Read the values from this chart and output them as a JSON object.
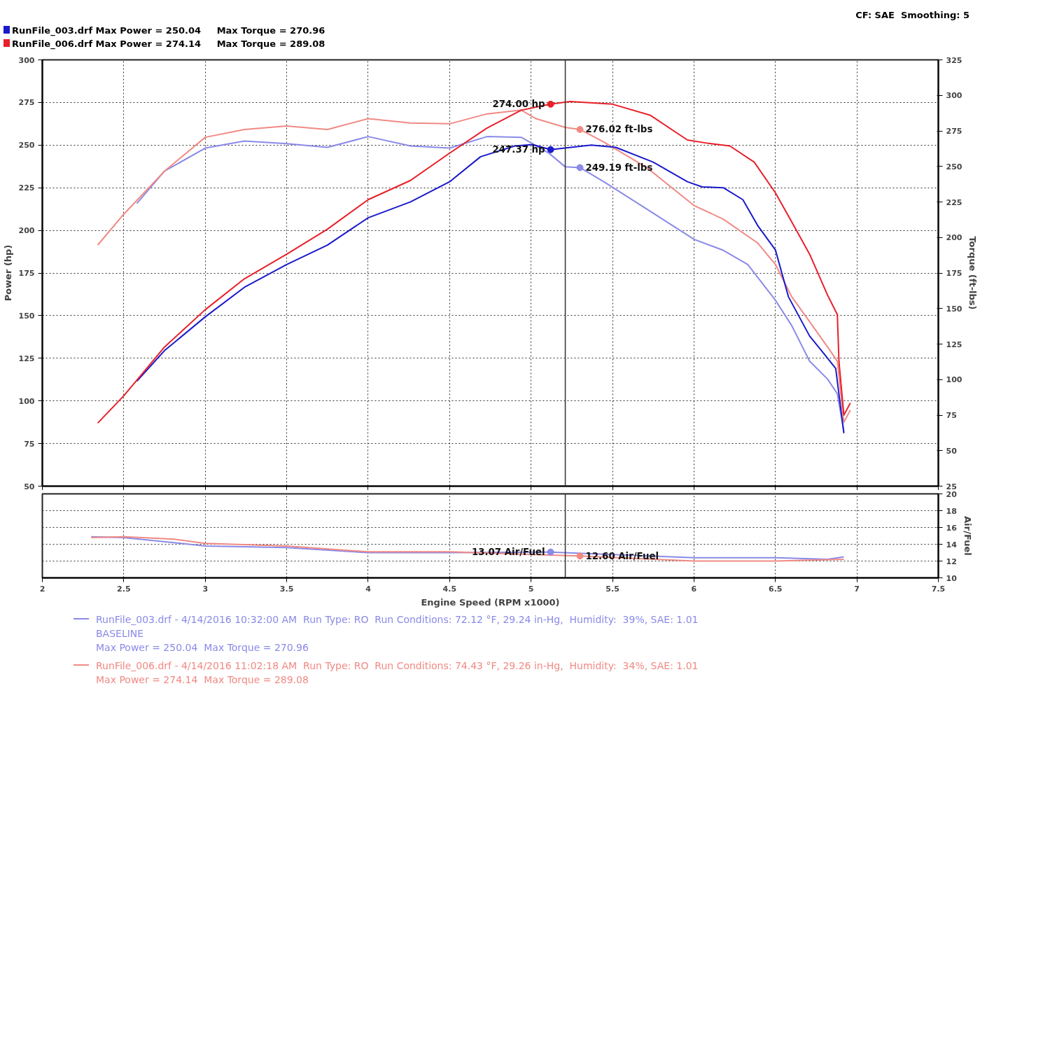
{
  "chart_data": [
    {
      "type": "line",
      "ylabel": "Power (hp)",
      "y2label": "Torque (ft-lbs)",
      "xlim": [
        2.0,
        7.5
      ],
      "xticks": [
        2.0,
        2.5,
        3.0,
        3.5,
        4.0,
        4.5,
        5.0,
        5.5,
        6.0,
        6.5,
        7.0,
        7.5
      ],
      "ylim": [
        50,
        300
      ],
      "yticks": [
        50,
        75,
        100,
        125,
        150,
        175,
        200,
        225,
        250,
        275,
        300
      ],
      "y2lim": [
        25,
        325
      ],
      "y2ticks": [
        25,
        50,
        75,
        100,
        125,
        150,
        175,
        200,
        225,
        250,
        275,
        300,
        325
      ],
      "grid": true,
      "tick_labels": "y",
      "line_style": "solid",
      "annotations": [
        "RunFile_003.drf Max Power = 250.04     Max Torque = 270.96",
        "RunFile_006.drf Max Power = 274.14     Max Torque = 289.08",
        "CF: SAE  Smoothing: 5"
      ],
      "ref_lines": [
        {
          "axis": "x",
          "value": 5.21,
          "color": "#333333"
        }
      ],
      "series": [
        {
          "color": "#8a8ae8",
          "axis": "y2",
          "x": [
            2.58,
            2.75,
            3.0,
            3.24,
            3.5,
            3.75,
            4.0,
            4.26,
            4.5,
            4.73,
            4.94,
            5.11,
            5.21,
            5.3,
            5.45,
            5.71,
            6.0,
            6.18,
            6.33,
            6.5,
            6.6,
            6.71,
            6.82,
            6.88,
            6.92
          ],
          "values": [
            224,
            246.7,
            262.9,
            267.9,
            266,
            263.4,
            271,
            264.4,
            262.9,
            271,
            270.5,
            259.3,
            249.7,
            249.19,
            239,
            220,
            198.7,
            191,
            181,
            155.8,
            138,
            112.9,
            100.3,
            90,
            63.4
          ],
          "value_labels": [
            null,
            null,
            null,
            null,
            null,
            null,
            null,
            null,
            null,
            null,
            null,
            null,
            null,
            "249.19 ft-lbs",
            null,
            null,
            null,
            null,
            null,
            null,
            null,
            null,
            null,
            null,
            null
          ]
        },
        {
          "color": "#f08a84",
          "axis": "y2",
          "x": [
            2.34,
            2.5,
            2.75,
            3.0,
            3.24,
            3.5,
            3.75,
            4.0,
            4.26,
            4.5,
            4.73,
            4.94,
            5.03,
            5.21,
            5.3,
            5.45,
            5.71,
            6.0,
            6.18,
            6.39,
            6.5,
            6.6,
            6.71,
            6.82,
            6.88,
            6.92,
            6.96
          ],
          "values": [
            194.7,
            216.4,
            246.7,
            270.5,
            276,
            278.5,
            276,
            283.6,
            280.6,
            280,
            287,
            289.6,
            283.6,
            277.5,
            276.02,
            266.9,
            249.2,
            222.5,
            212.9,
            196.2,
            181,
            158.3,
            140.7,
            123,
            112.9,
            70,
            78.5
          ],
          "value_labels": [
            null,
            null,
            null,
            null,
            null,
            null,
            null,
            null,
            null,
            null,
            null,
            null,
            null,
            null,
            "276.02 ft-lbs",
            null,
            null,
            null,
            null,
            null,
            null,
            null,
            null,
            null,
            null,
            null,
            null
          ]
        },
        {
          "color": "#1a1acc",
          "x": [
            2.58,
            2.75,
            3.0,
            3.24,
            3.5,
            3.75,
            4.0,
            4.26,
            4.5,
            4.69,
            4.9,
            5.01,
            5.12,
            5.37,
            5.52,
            5.75,
            5.96,
            6.05,
            6.18,
            6.3,
            6.39,
            6.5,
            6.58,
            6.71,
            6.8,
            6.87,
            6.92
          ],
          "values": [
            111.5,
            129.5,
            149.3,
            166.6,
            180,
            191.4,
            207.4,
            216.7,
            228.5,
            243.2,
            249.5,
            250.3,
            247.37,
            250,
            248.7,
            240,
            228.5,
            225.5,
            225,
            218,
            203,
            188.5,
            161,
            138,
            127.4,
            119,
            81
          ],
          "value_labels": [
            null,
            null,
            null,
            null,
            null,
            null,
            null,
            null,
            null,
            null,
            null,
            null,
            "247.37 hp",
            null,
            null,
            null,
            null,
            null,
            null,
            null,
            null,
            null,
            null,
            null,
            null,
            null,
            null
          ]
        },
        {
          "color": "#e8202a",
          "x": [
            2.34,
            2.5,
            2.75,
            3.0,
            3.24,
            3.5,
            3.75,
            4.0,
            4.26,
            4.5,
            4.73,
            4.94,
            5.12,
            5.24,
            5.5,
            5.73,
            5.96,
            6.09,
            6.22,
            6.37,
            6.5,
            6.6,
            6.71,
            6.82,
            6.88,
            6.89,
            6.92,
            6.96
          ],
          "values": [
            87,
            103,
            131.6,
            153.5,
            171.6,
            186,
            200.7,
            218,
            229.3,
            245.3,
            260,
            270.5,
            274.0,
            275.6,
            274,
            267.6,
            253,
            251,
            249.5,
            240,
            222,
            205,
            186,
            162,
            150.6,
            123,
            91.7,
            98.8
          ],
          "value_labels": [
            null,
            null,
            null,
            null,
            null,
            null,
            null,
            null,
            null,
            null,
            null,
            null,
            "274.00 hp",
            null,
            null,
            null,
            null,
            null,
            null,
            null,
            null,
            null,
            null,
            null,
            null,
            null,
            null,
            null
          ]
        }
      ]
    },
    {
      "type": "line",
      "xlabel": "Engine Speed (RPM x1000)",
      "ylabel": "Air/Fuel",
      "xlim": [
        2.0,
        7.5
      ],
      "xticks": [
        2.0,
        2.5,
        3.0,
        3.5,
        4.0,
        4.5,
        5.0,
        5.5,
        6.0,
        6.5,
        7.0,
        7.5
      ],
      "ylim": [
        10,
        20
      ],
      "yticks": [
        10,
        12,
        14,
        16,
        18,
        20
      ],
      "grid": true,
      "line_style": "solid",
      "legend": "bottom",
      "ref_lines": [
        {
          "axis": "x",
          "value": 5.21,
          "color": "#333333"
        }
      ],
      "series": [
        {
          "name": "RunFile_003.drf - 4/14/2016 10:32:00 AM  Run Type: RO  Run Conditions: 72.12 °F, 29.24 in-Hg,  Humidity:  39%, SAE: 1.01\nBASELINE\nMax Power = 250.04  Max Torque = 270.96",
          "color": "#8a8ae8",
          "x": [
            2.3,
            2.5,
            3.0,
            3.5,
            4.0,
            4.5,
            5.12,
            6.0,
            6.5,
            6.82,
            6.92
          ],
          "values": [
            14.9,
            14.8,
            13.8,
            13.6,
            13.0,
            13.0,
            13.07,
            12.4,
            12.4,
            12.2,
            12.5
          ],
          "value_labels": [
            null,
            null,
            null,
            null,
            null,
            null,
            "13.07 Air/Fuel",
            null,
            null,
            null,
            null
          ]
        },
        {
          "name": "RunFile_006.drf - 4/14/2016 11:02:18 AM  Run Type: RO  Run Conditions: 74.43 °F, 29.26 in-Hg,  Humidity:  34%, SAE: 1.01\nMax Power = 274.14  Max Torque = 289.08",
          "color": "#f08a84",
          "x": [
            2.3,
            2.5,
            2.81,
            3.0,
            3.5,
            4.0,
            4.5,
            5.3,
            6.0,
            6.5,
            6.92
          ],
          "values": [
            14.8,
            14.9,
            14.6,
            14.1,
            13.8,
            13.1,
            13.1,
            12.6,
            12.0,
            12.0,
            12.2
          ],
          "value_labels": [
            null,
            null,
            null,
            null,
            null,
            null,
            null,
            "12.60 Air/Fuel",
            null,
            null,
            null
          ]
        }
      ]
    }
  ]
}
